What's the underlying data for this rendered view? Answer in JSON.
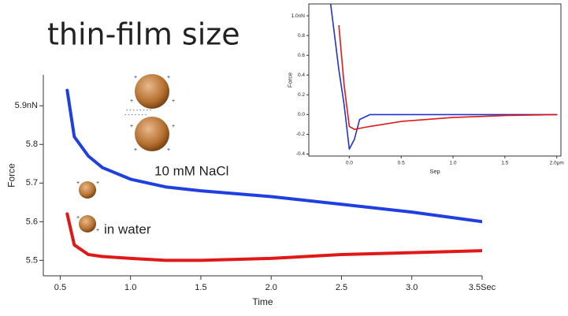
{
  "chart_data": [
    {
      "type": "line",
      "title": "thin-film size",
      "xlabel": "Time",
      "ylabel": "Force",
      "x": [
        0.55,
        0.6,
        0.7,
        0.8,
        1.0,
        1.25,
        1.5,
        2.0,
        2.5,
        3.0,
        3.5
      ],
      "series": [
        {
          "name": "10 mM NaCl",
          "color": "#1f3fe0",
          "values": [
            5.94,
            5.82,
            5.77,
            5.74,
            5.71,
            5.69,
            5.68,
            5.665,
            5.645,
            5.625,
            5.6
          ]
        },
        {
          "name": "in water",
          "color": "#e01818",
          "values": [
            5.62,
            5.54,
            5.515,
            5.51,
            5.505,
            5.5,
            5.5,
            5.505,
            5.515,
            5.52,
            5.525
          ]
        }
      ],
      "xlim": [
        0.38,
        3.5
      ],
      "ylim": [
        5.46,
        5.98
      ],
      "xticks": [
        0.5,
        {
          "value": 1,
          "label": "1.0"
        },
        1.5,
        {
          "value": 2,
          "label": "2.0"
        },
        2.5,
        {
          "value": 3,
          "label": "3.0"
        },
        {
          "value": 3.5,
          "label": "3.5Sec"
        }
      ],
      "yticks": [
        5.5,
        5.6,
        5.7,
        5.8,
        {
          "value": 5.9,
          "label": "5.9nN"
        }
      ]
    },
    {
      "type": "line",
      "xlabel": "Sep",
      "ylabel": "Force",
      "x": [
        -0.18,
        -0.1,
        -0.05,
        0.0,
        0.05,
        0.1,
        0.2,
        0.5,
        1.0,
        1.5,
        2.0
      ],
      "series": [
        {
          "color": "#2233cc",
          "values": [
            1.12,
            0.45,
            0.1,
            -0.35,
            -0.25,
            -0.05,
            0.0,
            0.0,
            0.0,
            0.0,
            0.0
          ]
        },
        {
          "color": "#e01818",
          "values": [
            null,
            0.9,
            0.3,
            -0.12,
            -0.15,
            -0.14,
            -0.12,
            -0.07,
            -0.03,
            -0.01,
            0.0
          ]
        }
      ],
      "xlim": [
        -0.39,
        2.04
      ],
      "ylim": [
        -0.42,
        1.12
      ],
      "xticks": [
        {
          "value": 0,
          "label": "0.0"
        },
        0.5,
        {
          "value": 1,
          "label": "1.0"
        },
        1.5,
        {
          "value": 2,
          "label": "2.0µm"
        }
      ],
      "yticks": [
        -0.4,
        -0.2,
        {
          "value": 0,
          "label": "0.0"
        },
        0.2,
        0.4,
        0.6,
        0.8,
        {
          "value": 1,
          "label": "1.0nN"
        }
      ]
    }
  ]
}
